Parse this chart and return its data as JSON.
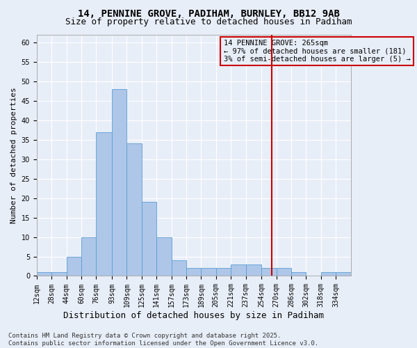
{
  "title1": "14, PENNINE GROVE, PADIHAM, BURNLEY, BB12 9AB",
  "title2": "Size of property relative to detached houses in Padiham",
  "xlabel": "Distribution of detached houses by size in Padiham",
  "ylabel": "Number of detached properties",
  "bin_labels": [
    "12sqm",
    "28sqm",
    "44sqm",
    "60sqm",
    "76sqm",
    "93sqm",
    "109sqm",
    "125sqm",
    "141sqm",
    "157sqm",
    "173sqm",
    "189sqm",
    "205sqm",
    "221sqm",
    "237sqm",
    "254sqm",
    "270sqm",
    "286sqm",
    "302sqm",
    "318sqm",
    "334sqm"
  ],
  "bin_edges": [
    12,
    28,
    44,
    60,
    76,
    93,
    109,
    125,
    141,
    157,
    173,
    189,
    205,
    221,
    237,
    254,
    270,
    286,
    302,
    318,
    334,
    350
  ],
  "values": [
    1,
    1,
    5,
    10,
    37,
    48,
    34,
    19,
    10,
    4,
    2,
    2,
    2,
    3,
    3,
    2,
    2,
    1,
    0,
    1,
    1
  ],
  "bar_color": "#aec6e8",
  "bar_edge_color": "#5a9fd4",
  "vline_x": 265,
  "vline_color": "#cc0000",
  "annotation_text": "14 PENNINE GROVE: 265sqm\n← 97% of detached houses are smaller (181)\n3% of semi-detached houses are larger (5) →",
  "ylim": [
    0,
    62
  ],
  "yticks": [
    0,
    5,
    10,
    15,
    20,
    25,
    30,
    35,
    40,
    45,
    50,
    55,
    60
  ],
  "background_color": "#e8eef8",
  "grid_color": "#ffffff",
  "footer": "Contains HM Land Registry data © Crown copyright and database right 2025.\nContains public sector information licensed under the Open Government Licence v3.0.",
  "title_fontsize": 10,
  "subtitle_fontsize": 9,
  "axis_label_fontsize": 8,
  "tick_fontsize": 7,
  "annotation_fontsize": 7.5,
  "footer_fontsize": 6.5
}
